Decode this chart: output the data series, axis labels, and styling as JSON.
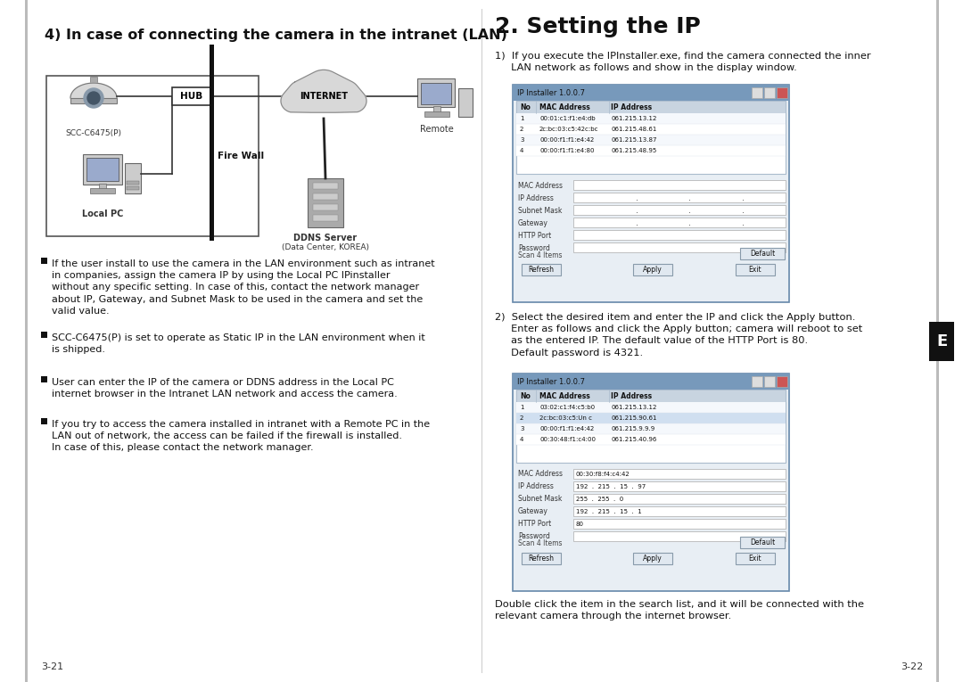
{
  "bg_color": "#ffffff",
  "left_section": {
    "title": "4) In case of connecting the camera in the intranet (LAN)",
    "page_num": "3-21",
    "bullets": [
      "If the user install to use the camera in the LAN environment such as intranet\nin companies, assign the camera IP by using the Local PC IPinstaller\nwithout any specific setting. In case of this, contact the network manager\nabout IP, Gateway, and Subnet Mask to be used in the camera and set the\nvalid value.",
      "SCC-C6475(P) is set to operate as Static IP in the LAN environment when it\nis shipped.",
      "User can enter the IP of the camera or DDNS address in the Local PC\ninternet browser in the Intranet LAN network and access the camera.",
      "If you try to access the camera installed in intranet with a Remote PC in the\nLAN out of network, the access can be failed if the firewall is installed.\nIn case of this, please contact the network manager."
    ]
  },
  "right_section": {
    "title": "2. Setting the IP",
    "page_num": "3-22",
    "step1": "1)  If you execute the IPInstaller.exe, find the camera connected the inner\n     LAN network as follows and show in the display window.",
    "step2": "2)  Select the desired item and enter the IP and click the Apply button.\n     Enter as follows and click the Apply button; camera will reboot to set\n     as the entered IP. The default value of the HTTP Port is 80.\n     Default password is 4321.",
    "bottom": "Double click the item in the search list, and it will be connected with the\nrelevant camera through the internet browser.",
    "win1_rows": [
      [
        "1",
        "00:01:c1:f1:e4:db",
        "061.215.13.12"
      ],
      [
        "2",
        "2c:bc:03:c5:42c:bc",
        "061.215.48.61"
      ],
      [
        "3",
        "00:00:f1:f1:e4:42",
        "061.215.13.87"
      ],
      [
        "4",
        "00:00:f1:f1:e4:80",
        "061.215.48.95"
      ]
    ],
    "win2_rows": [
      [
        "1",
        "03:02:c1:f4:c5:b0",
        "061.215.13.12"
      ],
      [
        "2",
        "2c:bc:03:c5:Un c",
        "061.215.90.61"
      ],
      [
        "3",
        "00:00:f1:f1:e4:42",
        "061.215.9.9.9"
      ],
      [
        "4",
        "00:30:48:f1:c4:00",
        "061.215.40.96"
      ]
    ],
    "win2_fields": [
      [
        "MAC Address",
        "00:30:f8:f4:c4:42"
      ],
      [
        "IP Address",
        "192  .  215  .  15  .  97"
      ],
      [
        "Subnet Mask",
        "255  .  255  .  0"
      ],
      [
        "Gateway",
        "192  .  215  .  15  .  1"
      ],
      [
        "HTTP Port",
        "80"
      ],
      [
        "Password",
        ""
      ]
    ]
  }
}
